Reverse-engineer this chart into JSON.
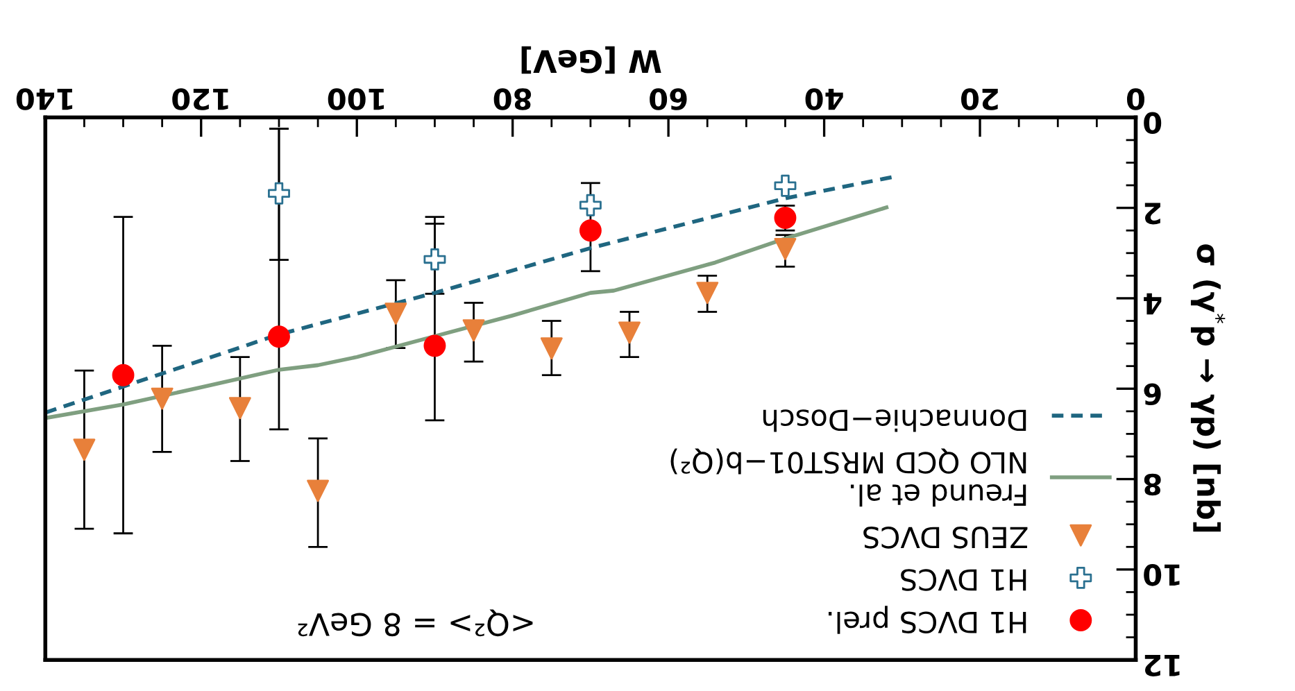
{
  "chart_data": {
    "type": "scatter",
    "xlabel": "W [GeV]",
    "ylabel": "σ (γ$^{*}$p → γp) [nb]",
    "xlim": [
      140,
      0
    ],
    "ylim": [
      12,
      0
    ],
    "xticks": [
      0,
      20,
      40,
      60,
      80,
      100,
      120,
      140
    ],
    "yticks": [
      0,
      2,
      4,
      6,
      8,
      10,
      12
    ],
    "grid": false,
    "legend": "bottom right",
    "annotations": [
      "<Q²> = 8 GeV²"
    ],
    "series": [
      {
        "name": "H1 DVCS prel.",
        "marker": "circle",
        "color": "#ff0000",
        "x": [
          130,
          110,
          90,
          70,
          45
        ],
        "values": [
          5.7,
          4.85,
          5.05,
          2.5,
          2.22
        ],
        "errors": [
          [
            2.2,
            9.2
          ],
          [
            0.25,
            6.9
          ],
          [
            2.2,
            6.7
          ],
          [
            1.45,
            3.4
          ],
          [
            1.95,
            2.5
          ]
        ]
      },
      {
        "name": "H1 DVCS",
        "marker": "cross",
        "color": "#2a7090",
        "x": [
          110,
          90,
          70,
          45
        ],
        "values": [
          1.68,
          3.14,
          1.94,
          1.51
        ],
        "errors": [
          [
            0.25,
            3.15
          ],
          [
            2.35,
            3.9
          ],
          null,
          null
        ]
      },
      {
        "name": "ZEUS DVCS",
        "marker": "triangle",
        "color": "#e8803a",
        "x": [
          135,
          125,
          115,
          105,
          95,
          85,
          75,
          65,
          55,
          45
        ],
        "values": [
          7.35,
          6.22,
          6.43,
          8.26,
          4.34,
          4.71,
          5.11,
          4.76,
          3.88,
          2.91
        ],
        "errors": [
          [
            5.6,
            9.1
          ],
          [
            5.05,
            7.4
          ],
          [
            5.3,
            7.6
          ],
          [
            7.1,
            9.5
          ],
          [
            3.6,
            5.1
          ],
          [
            4.1,
            5.4
          ],
          [
            4.5,
            5.7
          ],
          [
            4.3,
            5.3
          ],
          [
            3.5,
            4.3
          ],
          [
            2.6,
            3.3
          ]
        ]
      },
      {
        "name": "Freund et al.\nNLO QCD MRST01−b(Q²)",
        "type": "line",
        "line_style": "solid",
        "marker": "none",
        "color": "#7f9f80",
        "x": [
          140,
          130,
          120,
          110,
          105,
          100,
          90,
          80,
          70,
          67,
          54,
          45,
          32
        ],
        "values": [
          6.65,
          6.35,
          5.97,
          5.58,
          5.48,
          5.3,
          4.84,
          4.38,
          3.88,
          3.83,
          3.21,
          2.68,
          1.99
        ]
      },
      {
        "name": "Donnachie−Dosch",
        "type": "line",
        "line_style": "dashed",
        "marker": "none",
        "color": "#1f6680",
        "x": [
          140,
          110,
          90,
          70,
          45,
          31
        ],
        "values": [
          6.53,
          4.8,
          3.88,
          2.89,
          1.79,
          1.31
        ]
      }
    ]
  }
}
